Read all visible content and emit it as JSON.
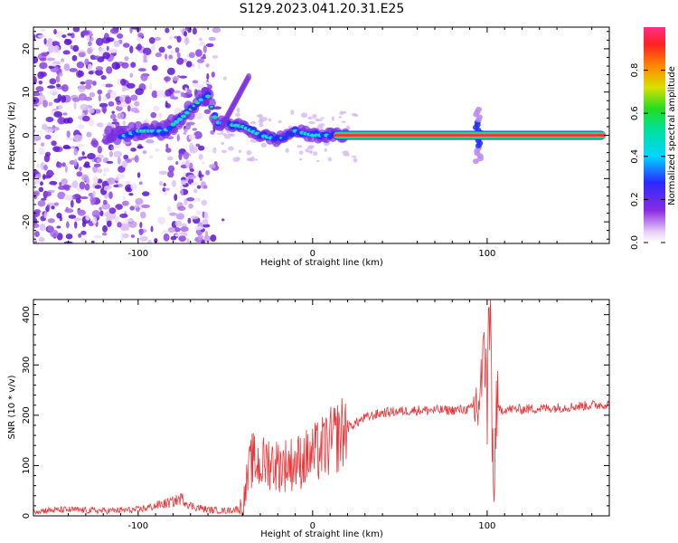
{
  "chart_data": [
    {
      "type": "heatmap",
      "title": "S129.2023.041.20.31.E25",
      "xlabel": "Height of straight line (km)",
      "ylabel": "Frequency (Hz)",
      "xlim": [
        -160,
        170
      ],
      "ylim": [
        -25,
        25
      ],
      "xticks": [
        -100,
        0,
        100
      ],
      "yticks": [
        -20,
        -10,
        0,
        10,
        20
      ],
      "colorbar": {
        "label": "Normalized spectral amplitude",
        "ticks": [
          0.0,
          0.2,
          0.4,
          0.6,
          0.8
        ],
        "range": [
          0,
          1
        ],
        "colormap": "white-violet-blue-cyan-green-yellow-orange-red-pink"
      },
      "ridge": [
        {
          "x": -115,
          "y": -1
        },
        {
          "x": -100,
          "y": 1
        },
        {
          "x": -85,
          "y": 1
        },
        {
          "x": -75,
          "y": 4
        },
        {
          "x": -65,
          "y": 8
        },
        {
          "x": -60,
          "y": 9
        },
        {
          "x": -55,
          "y": 3
        },
        {
          "x": -40,
          "y": 2
        },
        {
          "x": -30,
          "y": 0
        },
        {
          "x": -20,
          "y": -1
        },
        {
          "x": -10,
          "y": 1
        },
        {
          "x": 0,
          "y": 0
        },
        {
          "x": 20,
          "y": 0
        },
        {
          "x": 90,
          "y": 0
        },
        {
          "x": 95,
          "y": 0
        },
        {
          "x": 100,
          "y": 0
        },
        {
          "x": 168,
          "y": 0
        }
      ],
      "noise_region": [
        -160,
        -55
      ],
      "spike_x": 95
    },
    {
      "type": "line",
      "xlabel": "Height of straight line (km)",
      "ylabel": "SNR (10 * v/v)",
      "xlim": [
        -160,
        170
      ],
      "ylim": [
        0,
        430
      ],
      "xticks": [
        -100,
        0,
        100
      ],
      "yticks": [
        0,
        100,
        200,
        300,
        400
      ],
      "color": "#e8373a",
      "series": [
        {
          "x": [
            -160,
            -140,
            -120,
            -100,
            -90,
            -80,
            -75,
            -70,
            -60,
            -50,
            -40,
            -38,
            -35,
            -30,
            -25,
            -20,
            -10,
            0,
            10,
            20,
            30,
            40,
            50,
            60,
            70,
            80,
            90,
            95,
            98,
            100,
            102,
            103,
            104,
            105,
            110,
            120,
            140,
            160,
            170
          ],
          "y": [
            10,
            12,
            10,
            12,
            20,
            28,
            35,
            20,
            12,
            10,
            15,
            60,
            110,
            100,
            110,
            100,
            105,
            120,
            145,
            175,
            195,
            205,
            208,
            210,
            210,
            210,
            212,
            220,
            300,
            330,
            420,
            100,
            80,
            210,
            212,
            212,
            215,
            220,
            222
          ]
        }
      ]
    }
  ]
}
